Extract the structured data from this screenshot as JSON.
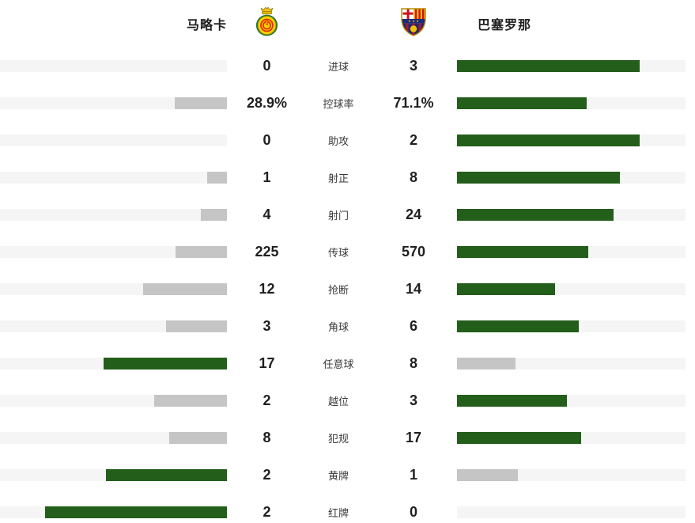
{
  "header": {
    "home_name": "马略卡",
    "away_name": "巴塞罗那",
    "home_crest": "mallorca-crest",
    "away_crest": "barcelona-crest"
  },
  "colors": {
    "leader_bar": "#235e1a",
    "trailer_bar": "#c5c5c5",
    "bar_track": "#f5f5f5",
    "value_text": "#1f1f1f"
  },
  "bar_rule": "fill width = 80% × value ÷ (home+away); higher value green, lower value gray",
  "stats": [
    {
      "label": "进球",
      "home": "0",
      "away": "3",
      "home_val": 0,
      "away_val": 3
    },
    {
      "label": "控球率",
      "home": "28.9%",
      "away": "71.1%",
      "home_val": 28.9,
      "away_val": 71.1
    },
    {
      "label": "助攻",
      "home": "0",
      "away": "2",
      "home_val": 0,
      "away_val": 2
    },
    {
      "label": "射正",
      "home": "1",
      "away": "8",
      "home_val": 1,
      "away_val": 8
    },
    {
      "label": "射门",
      "home": "4",
      "away": "24",
      "home_val": 4,
      "away_val": 24
    },
    {
      "label": "传球",
      "home": "225",
      "away": "570",
      "home_val": 225,
      "away_val": 570
    },
    {
      "label": "抢断",
      "home": "12",
      "away": "14",
      "home_val": 12,
      "away_val": 14
    },
    {
      "label": "角球",
      "home": "3",
      "away": "6",
      "home_val": 3,
      "away_val": 6
    },
    {
      "label": "任意球",
      "home": "17",
      "away": "8",
      "home_val": 17,
      "away_val": 8
    },
    {
      "label": "越位",
      "home": "2",
      "away": "3",
      "home_val": 2,
      "away_val": 3
    },
    {
      "label": "犯规",
      "home": "8",
      "away": "17",
      "home_val": 8,
      "away_val": 17
    },
    {
      "label": "黄牌",
      "home": "2",
      "away": "1",
      "home_val": 2,
      "away_val": 1
    },
    {
      "label": "红牌",
      "home": "2",
      "away": "0",
      "home_val": 2,
      "away_val": 0
    }
  ],
  "chart_data": {
    "type": "bar",
    "subtype": "mirrored-horizontal-comparison",
    "categories": [
      "进球",
      "控球率",
      "助攻",
      "射正",
      "射门",
      "传球",
      "抢断",
      "角球",
      "任意球",
      "越位",
      "犯规",
      "黄牌",
      "红牌"
    ],
    "series": [
      {
        "name": "马略卡",
        "values": [
          0,
          28.9,
          0,
          1,
          4,
          225,
          12,
          3,
          17,
          2,
          8,
          2,
          2
        ]
      },
      {
        "name": "巴塞罗那",
        "values": [
          3,
          71.1,
          2,
          8,
          24,
          570,
          14,
          6,
          8,
          3,
          17,
          1,
          0
        ]
      }
    ],
    "legend_position": "top",
    "grid": false,
    "value_labels": true,
    "leader_color": "#235e1a",
    "trailer_color": "#c5c5c5"
  }
}
